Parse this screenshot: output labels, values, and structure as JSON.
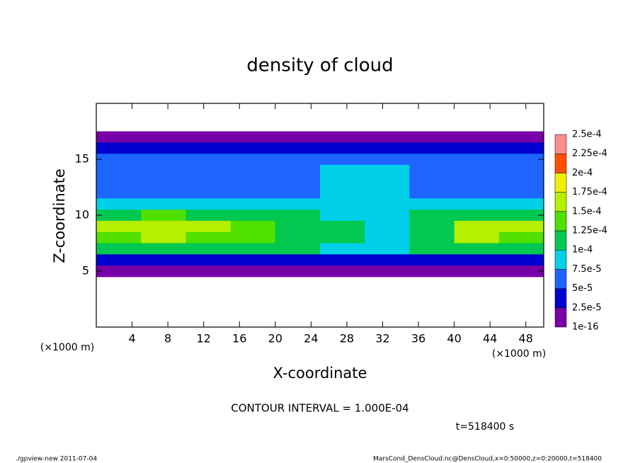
{
  "chart_data": {
    "type": "heatmap",
    "title": "density of cloud",
    "xlabel": "X-coordinate",
    "ylabel": "Z-coordinate",
    "x_unit": "(×1000 m)",
    "y_unit": "(×1000 m)",
    "xlim": [
      0,
      50
    ],
    "xticks": [
      4,
      8,
      12,
      16,
      20,
      24,
      28,
      32,
      36,
      40,
      44,
      48
    ],
    "ylim": [
      0,
      20
    ],
    "yticks": [
      5,
      10,
      15
    ],
    "x": [
      2.5,
      7.5,
      12.5,
      17.5,
      22.5,
      27.5,
      32.5,
      37.5,
      42.5,
      47.5
    ],
    "y": [
      17,
      16,
      15,
      14,
      13,
      12,
      11,
      10,
      9,
      8,
      7,
      6,
      5
    ],
    "values": [
      [
        1e-05,
        1e-05,
        1e-05,
        1e-05,
        1e-05,
        1e-05,
        1e-05,
        1e-05,
        1e-05,
        1e-05
      ],
      [
        3e-05,
        3e-05,
        3e-05,
        3e-05,
        3e-05,
        3e-05,
        3e-05,
        3e-05,
        3e-05,
        3e-05
      ],
      [
        6e-05,
        6e-05,
        6e-05,
        6e-05,
        6e-05,
        7e-05,
        7e-05,
        6e-05,
        6e-05,
        6e-05
      ],
      [
        6e-05,
        6e-05,
        6e-05,
        6e-05,
        6e-05,
        8e-05,
        8e-05,
        6e-05,
        6e-05,
        6e-05
      ],
      [
        7e-05,
        7e-05,
        7e-05,
        7e-05,
        7e-05,
        8e-05,
        8e-05,
        7e-05,
        7e-05,
        7e-05
      ],
      [
        7e-05,
        7e-05,
        7e-05,
        7e-05,
        7e-05,
        8e-05,
        8e-05,
        7e-05,
        7e-05,
        7e-05
      ],
      [
        9e-05,
        9e-05,
        9e-05,
        8e-05,
        8e-05,
        8e-05,
        8e-05,
        9e-05,
        9e-05,
        9e-05
      ],
      [
        0.00012,
        0.00013,
        0.00012,
        0.00011,
        0.00011,
        9e-05,
        9e-05,
        0.00011,
        0.00012,
        0.00012
      ],
      [
        0.00015,
        0.00017,
        0.00015,
        0.00013,
        0.00012,
        0.00011,
        9e-05,
        0.00012,
        0.00016,
        0.00015
      ],
      [
        0.00014,
        0.00016,
        0.00014,
        0.00013,
        0.00012,
        0.00011,
        9e-05,
        0.00012,
        0.00015,
        0.00014
      ],
      [
        0.00011,
        0.00011,
        0.00011,
        0.00011,
        0.00011,
        9e-05,
        9e-05,
        0.00011,
        0.00011,
        0.00011
      ],
      [
        4e-05,
        4e-05,
        4e-05,
        4e-05,
        4e-05,
        4e-05,
        4e-05,
        4e-05,
        4e-05,
        4e-05
      ],
      [
        2e-05,
        2e-05,
        2e-05,
        2e-05,
        2e-05,
        2e-05,
        2e-05,
        2e-05,
        2e-05,
        2e-05
      ]
    ],
    "levels": [
      1e-16,
      {
        "value": 2.5e-05,
        "label": "2.5e-5"
      },
      {
        "value": 5e-05,
        "label": "5e-5"
      },
      {
        "value": 7.5e-05,
        "label": "7.5e-5"
      },
      {
        "value": 0.0001,
        "label": "1e-4"
      },
      {
        "value": 0.000125,
        "label": "1.25e-4"
      },
      {
        "value": 0.00015,
        "label": "1.5e-4"
      },
      {
        "value": 0.000175,
        "label": "1.75e-4"
      },
      {
        "value": 0.0002,
        "label": "2e-4"
      },
      {
        "value": 0.000225,
        "label": "2.25e-4"
      },
      {
        "value": 0.00025,
        "label": "2.5e-4"
      }
    ],
    "colors": [
      "#7800a8",
      "#0000d0",
      "#1e64ff",
      "#00d0e8",
      "#00c850",
      "#50e000",
      "#b4f000",
      "#f0f000",
      "#ff5000",
      "#ff8c8c"
    ],
    "annotation": "CONTOUR INTERVAL = 1.000E-04",
    "time_label": "t=518400 s",
    "footer_left": "./gpview-new  2011-07-04",
    "footer_right": "MarsCond_DensCloud.nc@DensCloud,x=0:50000,z=0:20000,t=518400"
  }
}
